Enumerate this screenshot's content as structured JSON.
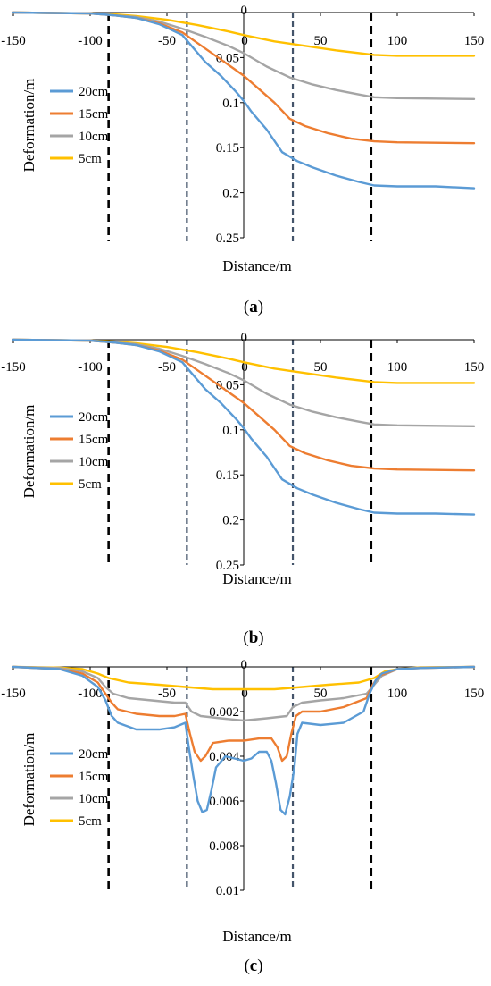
{
  "chart_data": [
    {
      "id": "a",
      "type": "line",
      "caption_open": "(",
      "caption": "a",
      "caption_close": ")",
      "xlabel": "Distance/m",
      "ylabel": "Deformation/m",
      "xlim": [
        -150,
        150
      ],
      "ylim": [
        0,
        0.25
      ],
      "y_inverted": true,
      "x_ticks": [
        "-150",
        "-100",
        "-50",
        "0",
        "50",
        "100",
        "150"
      ],
      "x_tick_values": [
        -150,
        -100,
        -50,
        0,
        50,
        100,
        150
      ],
      "y_ticks": [
        "0",
        "0.05",
        "0.1",
        "0.15",
        "0.2",
        "0.25"
      ],
      "y_tick_values": [
        0,
        0.05,
        0.1,
        0.15,
        0.2,
        0.25
      ],
      "dashed_verticals": [
        {
          "x": -88,
          "color": "#000000"
        },
        {
          "x": -37,
          "color": "#44546a"
        },
        {
          "x": 32,
          "color": "#44546a"
        },
        {
          "x": 83,
          "color": "#000000"
        }
      ],
      "series": [
        {
          "name": "20cm",
          "color": "#5b9bd5",
          "x": [
            -150,
            -100,
            -85,
            -70,
            -55,
            -40,
            -35,
            -25,
            -15,
            -5,
            0,
            5,
            15,
            25,
            35,
            45,
            60,
            75,
            85,
            100,
            125,
            150
          ],
          "values": [
            0,
            0.001,
            0.003,
            0.006,
            0.013,
            0.025,
            0.035,
            0.055,
            0.07,
            0.088,
            0.098,
            0.11,
            0.13,
            0.155,
            0.165,
            0.172,
            0.181,
            0.188,
            0.192,
            0.193,
            0.193,
            0.195
          ]
        },
        {
          "name": "15cm",
          "color": "#ed7d31",
          "x": [
            -150,
            -100,
            -85,
            -70,
            -55,
            -40,
            -25,
            -10,
            0,
            10,
            20,
            30,
            40,
            55,
            70,
            85,
            100,
            150
          ],
          "values": [
            0,
            0.001,
            0.003,
            0.006,
            0.012,
            0.022,
            0.04,
            0.058,
            0.07,
            0.085,
            0.1,
            0.118,
            0.126,
            0.134,
            0.14,
            0.143,
            0.144,
            0.145
          ]
        },
        {
          "name": "10cm",
          "color": "#a5a5a5",
          "x": [
            -150,
            -100,
            -85,
            -70,
            -55,
            -40,
            -25,
            -10,
            0,
            15,
            30,
            45,
            60,
            75,
            85,
            100,
            150
          ],
          "values": [
            0,
            0.001,
            0.003,
            0.005,
            0.01,
            0.018,
            0.027,
            0.037,
            0.045,
            0.06,
            0.072,
            0.08,
            0.086,
            0.091,
            0.094,
            0.095,
            0.096
          ]
        },
        {
          "name": "5cm",
          "color": "#ffc000",
          "x": [
            -150,
            -100,
            -85,
            -70,
            -50,
            -30,
            -10,
            0,
            20,
            40,
            60,
            85,
            100,
            150
          ],
          "values": [
            0,
            0.001,
            0.002,
            0.004,
            0.008,
            0.014,
            0.021,
            0.025,
            0.032,
            0.037,
            0.042,
            0.047,
            0.048,
            0.048
          ]
        }
      ]
    },
    {
      "id": "b",
      "type": "line",
      "caption_open": "(",
      "caption": "b",
      "caption_close": ")",
      "xlabel": "Distance/m",
      "ylabel": "Deformation/m",
      "xlim": [
        -150,
        150
      ],
      "ylim": [
        0,
        0.25
      ],
      "y_inverted": true,
      "x_ticks": [
        "-150",
        "-100",
        "-50",
        "0",
        "50",
        "100",
        "150"
      ],
      "x_tick_values": [
        -150,
        -100,
        -50,
        0,
        50,
        100,
        150
      ],
      "y_ticks": [
        "0",
        "0.05",
        "0.1",
        "0.15",
        "0.2",
        "0.25"
      ],
      "y_tick_values": [
        0,
        0.05,
        0.1,
        0.15,
        0.2,
        0.25
      ],
      "dashed_verticals": [
        {
          "x": -88,
          "color": "#000000"
        },
        {
          "x": -37,
          "color": "#44546a"
        },
        {
          "x": 32,
          "color": "#44546a"
        },
        {
          "x": 83,
          "color": "#000000"
        }
      ],
      "series": [
        {
          "name": "20cm",
          "color": "#5b9bd5",
          "x": [
            -150,
            -100,
            -85,
            -70,
            -55,
            -40,
            -35,
            -25,
            -15,
            -5,
            0,
            5,
            15,
            25,
            35,
            45,
            60,
            75,
            85,
            100,
            125,
            150
          ],
          "values": [
            0,
            0.001,
            0.003,
            0.006,
            0.013,
            0.025,
            0.035,
            0.055,
            0.07,
            0.088,
            0.098,
            0.11,
            0.13,
            0.155,
            0.165,
            0.172,
            0.181,
            0.188,
            0.192,
            0.193,
            0.193,
            0.194
          ]
        },
        {
          "name": "15cm",
          "color": "#ed7d31",
          "x": [
            -150,
            -100,
            -85,
            -70,
            -55,
            -40,
            -25,
            -10,
            0,
            10,
            20,
            30,
            40,
            55,
            70,
            85,
            100,
            150
          ],
          "values": [
            0,
            0.001,
            0.003,
            0.006,
            0.012,
            0.022,
            0.04,
            0.058,
            0.07,
            0.085,
            0.1,
            0.118,
            0.126,
            0.134,
            0.14,
            0.143,
            0.144,
            0.145
          ]
        },
        {
          "name": "10cm",
          "color": "#a5a5a5",
          "x": [
            -150,
            -100,
            -85,
            -70,
            -55,
            -40,
            -25,
            -10,
            0,
            15,
            30,
            45,
            60,
            75,
            85,
            100,
            150
          ],
          "values": [
            0,
            0.001,
            0.003,
            0.005,
            0.01,
            0.018,
            0.027,
            0.037,
            0.045,
            0.06,
            0.072,
            0.08,
            0.086,
            0.091,
            0.094,
            0.095,
            0.096
          ]
        },
        {
          "name": "5cm",
          "color": "#ffc000",
          "x": [
            -150,
            -100,
            -85,
            -70,
            -50,
            -30,
            -10,
            0,
            20,
            40,
            60,
            85,
            100,
            150
          ],
          "values": [
            0,
            0.001,
            0.002,
            0.004,
            0.008,
            0.014,
            0.021,
            0.025,
            0.032,
            0.037,
            0.042,
            0.047,
            0.048,
            0.048
          ]
        }
      ]
    },
    {
      "id": "c",
      "type": "line",
      "caption_open": "(",
      "caption": "c",
      "caption_close": ")",
      "xlabel": "Distance/m",
      "ylabel": "Deformation/m",
      "xlim": [
        -150,
        150
      ],
      "ylim": [
        0,
        0.01
      ],
      "y_inverted": true,
      "x_ticks": [
        "-150",
        "-100",
        "-50",
        "0",
        "50",
        "100",
        "150"
      ],
      "x_tick_values": [
        -150,
        -100,
        -50,
        0,
        50,
        100,
        150
      ],
      "y_ticks": [
        "0",
        "0.002",
        "0.004",
        "0.006",
        "0.008",
        "0.01"
      ],
      "y_tick_values": [
        0,
        0.002,
        0.004,
        0.006,
        0.008,
        0.01
      ],
      "dashed_verticals": [
        {
          "x": -88,
          "color": "#000000"
        },
        {
          "x": -37,
          "color": "#44546a"
        },
        {
          "x": 32,
          "color": "#44546a"
        },
        {
          "x": 83,
          "color": "#000000"
        }
      ],
      "series": [
        {
          "name": "20cm",
          "color": "#5b9bd5",
          "x": [
            -150,
            -120,
            -105,
            -95,
            -90,
            -86,
            -82,
            -70,
            -55,
            -45,
            -38,
            -36,
            -33,
            -30,
            -27,
            -24,
            -21,
            -18,
            -12,
            -6,
            0,
            5,
            10,
            15,
            18,
            21,
            24,
            27,
            30,
            33,
            35,
            38,
            50,
            65,
            78,
            82,
            86,
            90,
            100,
            115,
            150
          ],
          "values": [
            0,
            0.0001,
            0.0004,
            0.0009,
            0.0015,
            0.0022,
            0.0025,
            0.0028,
            0.0028,
            0.0027,
            0.0025,
            0.0035,
            0.0048,
            0.006,
            0.0065,
            0.0064,
            0.0055,
            0.0045,
            0.004,
            0.0041,
            0.0042,
            0.0041,
            0.0038,
            0.0038,
            0.0042,
            0.0052,
            0.0064,
            0.0066,
            0.0058,
            0.0045,
            0.003,
            0.0025,
            0.0026,
            0.0025,
            0.002,
            0.0012,
            0.0006,
            0.0003,
            0.0001,
            5e-05,
            0
          ]
        },
        {
          "name": "15cm",
          "color": "#ed7d31",
          "x": [
            -150,
            -120,
            -105,
            -95,
            -90,
            -86,
            -82,
            -70,
            -55,
            -45,
            -38,
            -35,
            -32,
            -28,
            -25,
            -20,
            -10,
            0,
            10,
            18,
            22,
            25,
            28,
            31,
            34,
            38,
            50,
            65,
            80,
            84,
            88,
            100,
            115,
            150
          ],
          "values": [
            0,
            0.0001,
            0.0003,
            0.0007,
            0.0012,
            0.0016,
            0.0019,
            0.0021,
            0.0022,
            0.0022,
            0.0021,
            0.003,
            0.0038,
            0.0042,
            0.004,
            0.0034,
            0.0033,
            0.0033,
            0.0032,
            0.0032,
            0.0036,
            0.0042,
            0.004,
            0.003,
            0.0022,
            0.002,
            0.002,
            0.0018,
            0.0014,
            0.0008,
            0.0004,
            0.0001,
            5e-05,
            0
          ]
        },
        {
          "name": "10cm",
          "color": "#a5a5a5",
          "x": [
            -150,
            -120,
            -105,
            -95,
            -90,
            -85,
            -75,
            -60,
            -45,
            -38,
            -34,
            -28,
            -15,
            0,
            15,
            28,
            32,
            38,
            50,
            65,
            80,
            85,
            90,
            100,
            115,
            150
          ],
          "values": [
            0,
            5e-05,
            0.0002,
            0.0005,
            0.0009,
            0.0012,
            0.0014,
            0.0015,
            0.0016,
            0.0016,
            0.002,
            0.0022,
            0.0023,
            0.0024,
            0.0023,
            0.0022,
            0.0018,
            0.0016,
            0.0015,
            0.0014,
            0.0012,
            0.0008,
            0.0004,
            0.0001,
            3e-05,
            0
          ]
        },
        {
          "name": "5cm",
          "color": "#ffc000",
          "x": [
            -150,
            -120,
            -105,
            -95,
            -88,
            -75,
            -55,
            -38,
            -20,
            0,
            20,
            38,
            55,
            75,
            85,
            92,
            100,
            115,
            150
          ],
          "values": [
            0,
            3e-05,
            0.0001,
            0.0003,
            0.0005,
            0.0007,
            0.0008,
            0.0009,
            0.001,
            0.001,
            0.001,
            0.0009,
            0.0008,
            0.0007,
            0.0005,
            0.0002,
            0.0001,
            2e-05,
            0
          ]
        }
      ]
    }
  ]
}
